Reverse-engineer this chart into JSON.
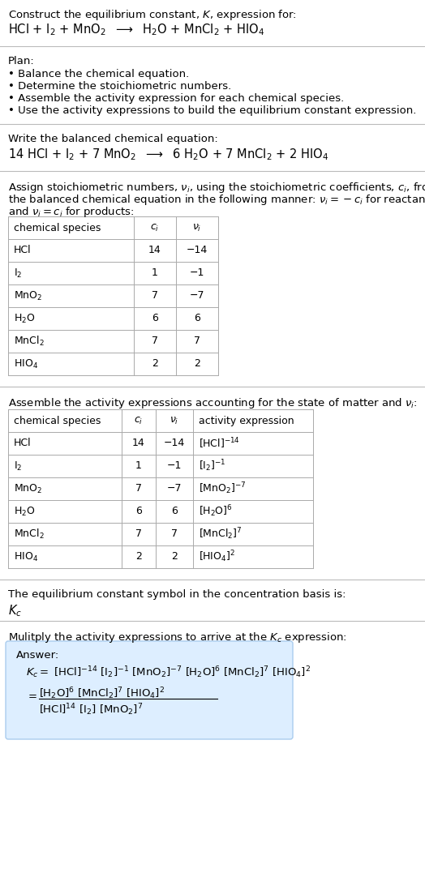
{
  "title_line1": "Construct the equilibrium constant, $K$, expression for:",
  "reaction_unbalanced": "HCl + I$_2$ + MnO$_2$  $\\longrightarrow$  H$_2$O + MnCl$_2$ + HIO$_4$",
  "plan_header": "Plan:",
  "plan_bullets": [
    "• Balance the chemical equation.",
    "• Determine the stoichiometric numbers.",
    "• Assemble the activity expression for each chemical species.",
    "• Use the activity expressions to build the equilibrium constant expression."
  ],
  "balanced_header": "Write the balanced chemical equation:",
  "reaction_balanced": "14 HCl + I$_2$ + 7 MnO$_2$  $\\longrightarrow$  6 H$_2$O + 7 MnCl$_2$ + 2 HIO$_4$",
  "stoich_header1": "Assign stoichiometric numbers, $\\nu_i$, using the stoichiometric coefficients, $c_i$, from",
  "stoich_header2": "the balanced chemical equation in the following manner: $\\nu_i = -c_i$ for reactants",
  "stoich_header3": "and $\\nu_i = c_i$ for products:",
  "table1_headers": [
    "chemical species",
    "$c_i$",
    "$\\nu_i$"
  ],
  "table1_rows": [
    [
      "HCl",
      "14",
      "−14"
    ],
    [
      "I$_2$",
      "1",
      "−1"
    ],
    [
      "MnO$_2$",
      "7",
      "−7"
    ],
    [
      "H$_2$O",
      "6",
      "6"
    ],
    [
      "MnCl$_2$",
      "7",
      "7"
    ],
    [
      "HIO$_4$",
      "2",
      "2"
    ]
  ],
  "activity_header": "Assemble the activity expressions accounting for the state of matter and $\\nu_i$:",
  "table2_headers": [
    "chemical species",
    "$c_i$",
    "$\\nu_i$",
    "activity expression"
  ],
  "table2_rows": [
    [
      "HCl",
      "14",
      "−14",
      "[HCl]$^{-14}$"
    ],
    [
      "I$_2$",
      "1",
      "−1",
      "[I$_2$]$^{-1}$"
    ],
    [
      "MnO$_2$",
      "7",
      "−7",
      "[MnO$_2$]$^{-7}$"
    ],
    [
      "H$_2$O",
      "6",
      "6",
      "[H$_2$O]$^6$"
    ],
    [
      "MnCl$_2$",
      "7",
      "7",
      "[MnCl$_2$]$^7$"
    ],
    [
      "HIO$_4$",
      "2",
      "2",
      "[HIO$_4$]$^2$"
    ]
  ],
  "kc_text": "The equilibrium constant symbol in the concentration basis is:",
  "kc_symbol": "$K_c$",
  "multiply_text": "Mulitply the activity expressions to arrive at the $K_c$ expression:",
  "answer_label": "Answer:",
  "answer_line1": "$K_c = $ [HCl]$^{-14}$ [I$_2$]$^{-1}$ [MnO$_2$]$^{-7}$ [H$_2$O]$^6$ [MnCl$_2$]$^7$ [HIO$_4$]$^2$",
  "answer_eq": "$=$",
  "answer_num": "[H$_2$O]$^6$ [MnCl$_2$]$^7$ [HIO$_4$]$^2$",
  "answer_den": "[HCl]$^{14}$ [I$_2$] [MnO$_2$]$^7$",
  "bg_color": "#ffffff",
  "box_color": "#ddeeff",
  "box_border": "#aaccee",
  "rule_color": "#bbbbbb",
  "table_border_color": "#aaaaaa",
  "text_color": "#000000",
  "fs": 9.5
}
